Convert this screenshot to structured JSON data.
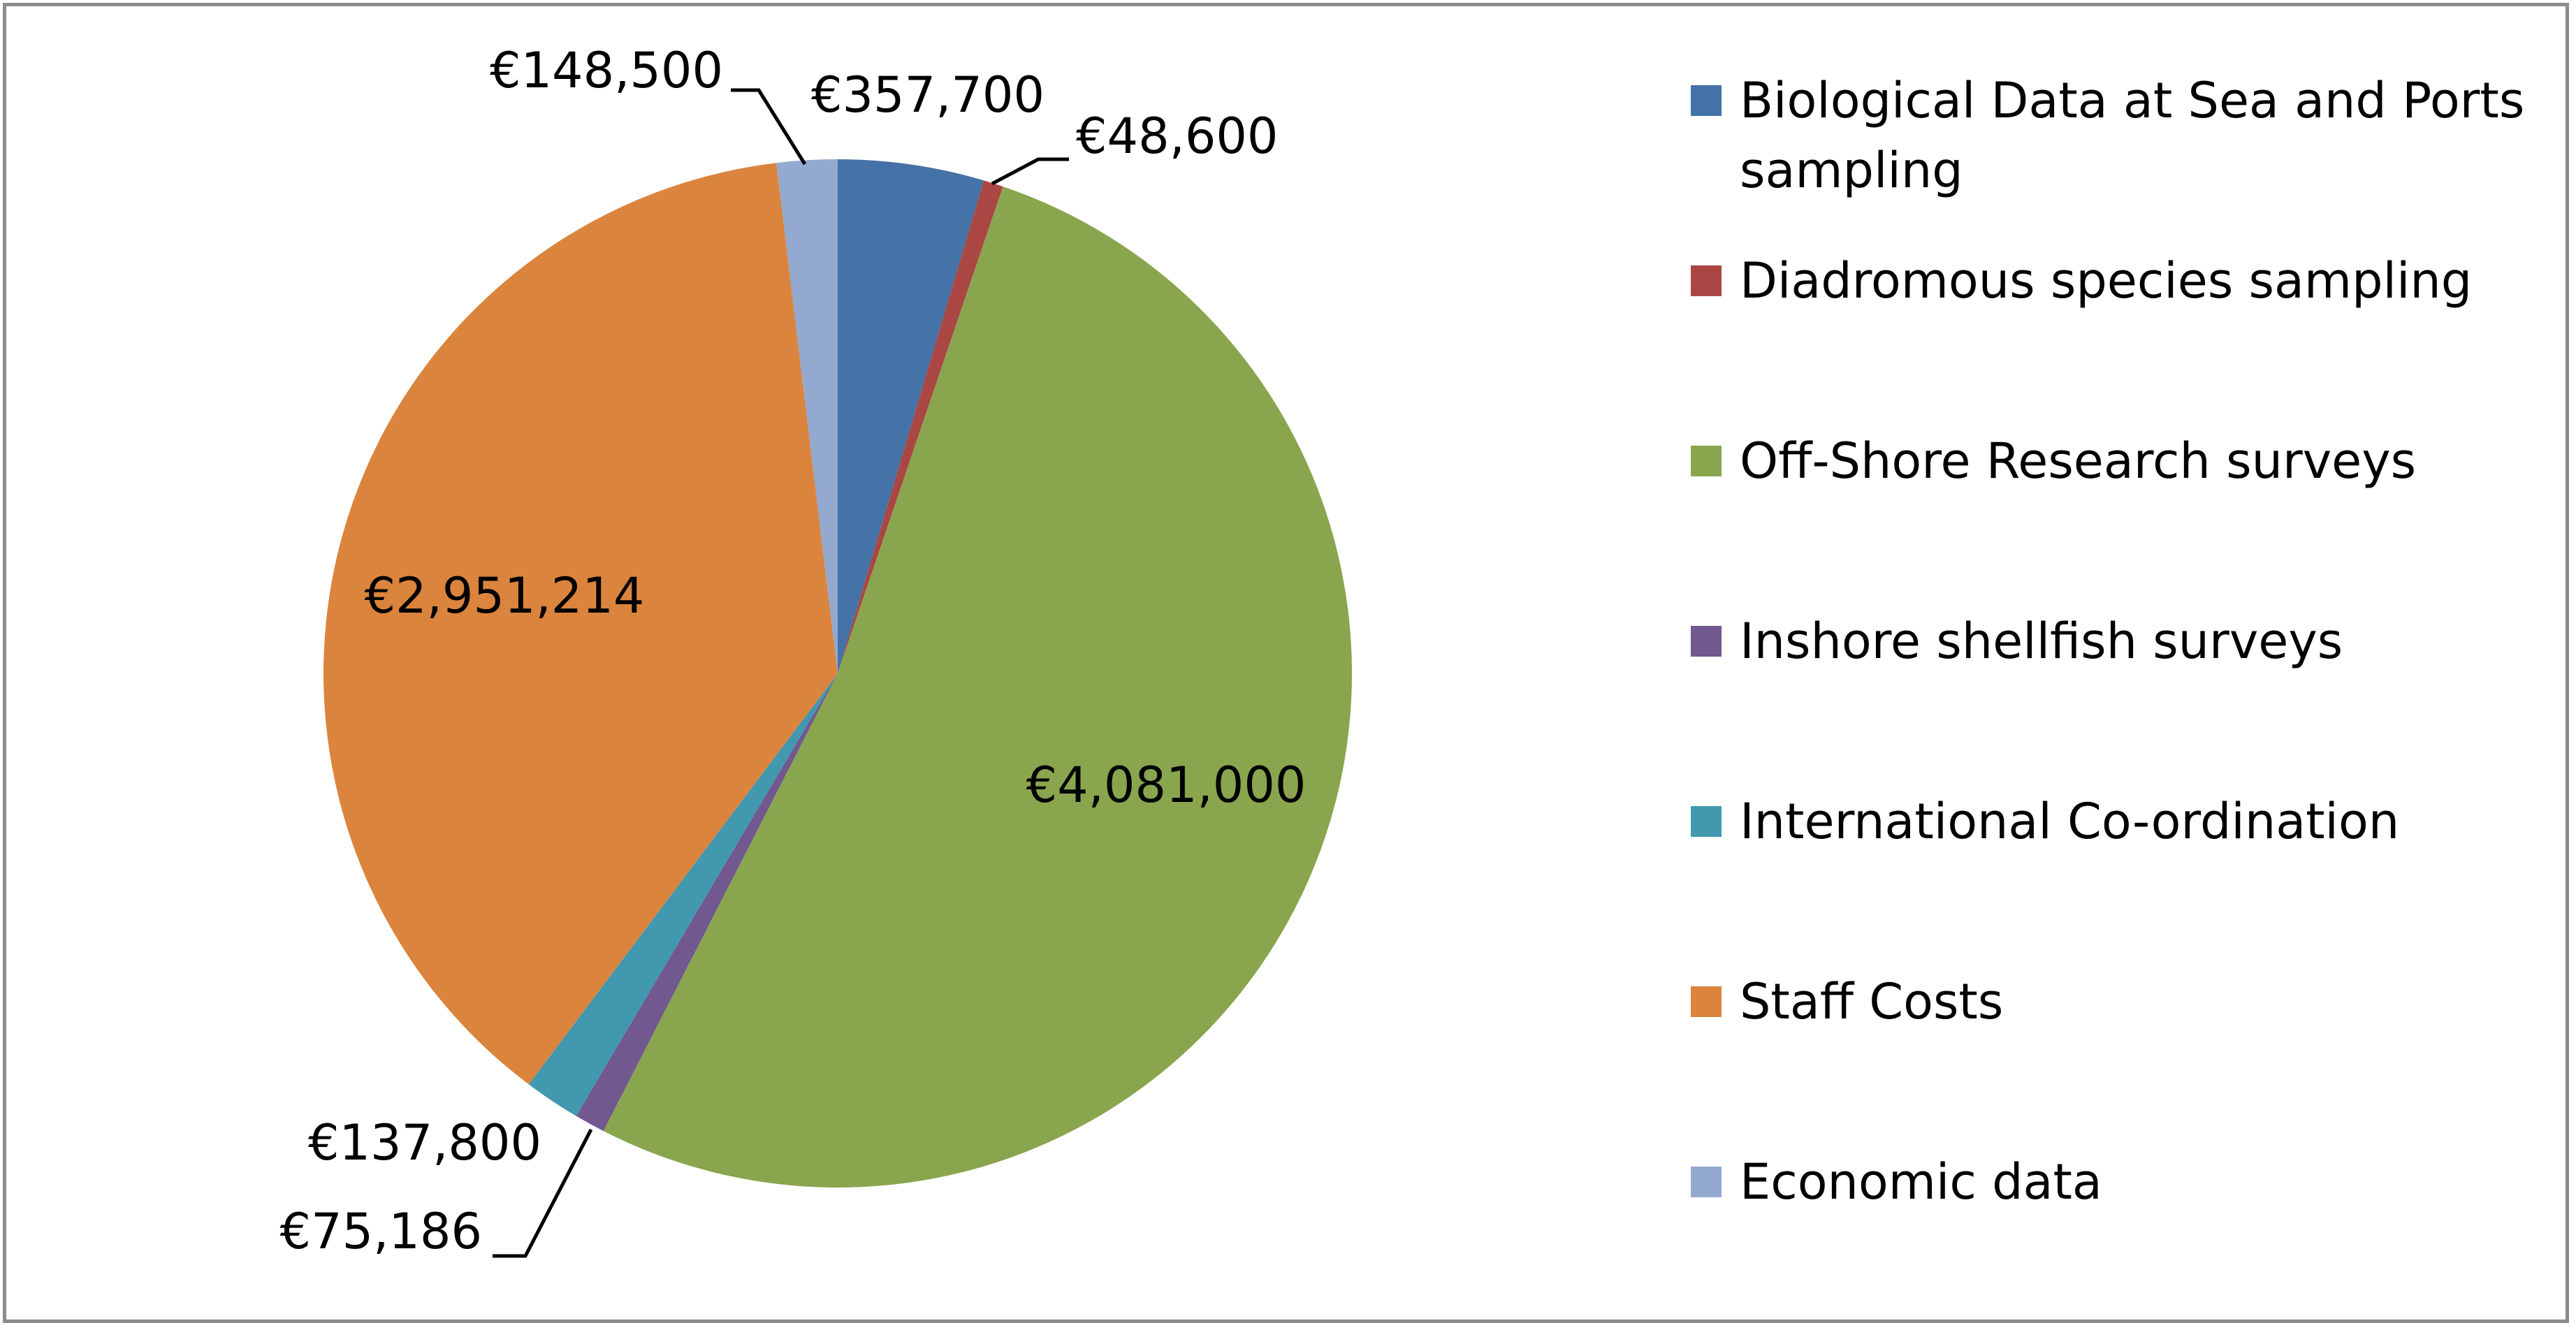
{
  "chart_data": {
    "type": "pie",
    "categories": [
      "Biological Data at Sea and Ports sampling",
      "Diadromous species sampling",
      "Off-Shore Research surveys",
      "Inshore shellfish surveys",
      "International Co-ordination",
      "Staff Costs",
      "Economic data"
    ],
    "values": [
      357700,
      48600,
      4081000,
      75186,
      137800,
      2951214,
      148500
    ],
    "value_labels": [
      "€357,700",
      "€48,600",
      "€4,081,000",
      "€75,186",
      "€137,800",
      "€2,951,214",
      "€148,500"
    ],
    "colors": [
      "#4572a7",
      "#aa4643",
      "#89a54e",
      "#71588f",
      "#4198af",
      "#db843d",
      "#93a9cf"
    ],
    "legend": "right"
  }
}
